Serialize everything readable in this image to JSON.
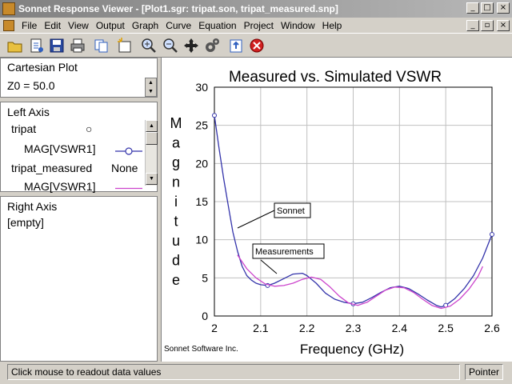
{
  "window": {
    "title": "Sonnet Response Viewer - [Plot1.sgr: tripat.son, tripat_measured.snp]",
    "controls": [
      "_",
      "□",
      "×"
    ],
    "mdi_controls": [
      "_",
      "▫",
      "×"
    ]
  },
  "menu": [
    "File",
    "Edit",
    "View",
    "Output",
    "Graph",
    "Curve",
    "Equation",
    "Project",
    "Window",
    "Help"
  ],
  "toolbar": [
    "open-icon",
    "new-icon",
    "save-icon",
    "print-icon",
    "copy-icon",
    "new-window-icon",
    "zoom-in-icon",
    "zoom-out-icon",
    "pan-icon",
    "settings-icon",
    "refresh-icon",
    "stop-icon"
  ],
  "panes": {
    "cartesian": {
      "title": "Cartesian Plot",
      "z0": "Z0 = 50.0"
    },
    "left_axis": {
      "title": "Left Axis",
      "items": [
        {
          "name": "tripat",
          "sym": "○"
        },
        {
          "name": "MAG[VSWR1]",
          "sym": ""
        },
        {
          "name": "tripat_measured",
          "sym": "None"
        },
        {
          "name": "MAG[VSWR1]",
          "sym": ""
        }
      ]
    },
    "right_axis": {
      "title": "Right Axis",
      "empty": "[empty]"
    }
  },
  "chart_data": {
    "type": "line",
    "title": "Measured vs. Simulated VSWR",
    "xlabel": "Frequency (GHz)",
    "ylabel": "Magnitude",
    "xlim": [
      2,
      2.6
    ],
    "ylim": [
      0,
      30
    ],
    "xticks": [
      "2",
      "2.1",
      "2.2",
      "2.3",
      "2.4",
      "2.5",
      "2.6"
    ],
    "yticks": [
      "0",
      "5",
      "10",
      "15",
      "20",
      "25",
      "30"
    ],
    "grid": true,
    "footer": "Sonnet Software Inc.",
    "annotations": [
      "Sonnet",
      "Measurements"
    ],
    "series": [
      {
        "name": "tripat MAG[VSWR1]",
        "color": "#3333aa",
        "marker": "circle",
        "x": [
          2.0,
          2.01,
          2.02,
          2.03,
          2.04,
          2.05,
          2.06,
          2.07,
          2.08,
          2.09,
          2.1,
          2.115,
          2.13,
          2.15,
          2.17,
          2.19,
          2.2,
          2.22,
          2.24,
          2.26,
          2.28,
          2.3,
          2.32,
          2.34,
          2.36,
          2.38,
          2.4,
          2.42,
          2.44,
          2.46,
          2.48,
          2.49,
          2.5,
          2.52,
          2.54,
          2.56,
          2.58,
          2.6
        ],
        "y": [
          26.3,
          22.0,
          18.0,
          14.5,
          11.0,
          8.5,
          6.5,
          5.3,
          4.7,
          4.3,
          4.1,
          4.0,
          4.3,
          4.9,
          5.5,
          5.6,
          5.3,
          4.3,
          3.0,
          2.2,
          1.8,
          1.6,
          1.8,
          2.4,
          3.1,
          3.7,
          3.9,
          3.6,
          2.9,
          2.1,
          1.4,
          1.2,
          1.4,
          2.3,
          3.6,
          5.3,
          7.6,
          10.7
        ]
      },
      {
        "name": "tripat_measured MAG[VSWR1]",
        "color": "#cc44cc",
        "marker": "none",
        "x": [
          2.05,
          2.07,
          2.09,
          2.11,
          2.13,
          2.15,
          2.17,
          2.19,
          2.21,
          2.23,
          2.25,
          2.27,
          2.29,
          2.31,
          2.33,
          2.35,
          2.37,
          2.39,
          2.41,
          2.43,
          2.45,
          2.47,
          2.49,
          2.51,
          2.53,
          2.55,
          2.57,
          2.58
        ],
        "y": [
          8.0,
          6.2,
          5.0,
          4.2,
          3.9,
          4.0,
          4.3,
          4.8,
          5.1,
          4.8,
          3.8,
          2.6,
          1.7,
          1.4,
          1.8,
          2.6,
          3.4,
          3.8,
          3.7,
          3.1,
          2.2,
          1.4,
          1.0,
          1.3,
          2.2,
          3.5,
          5.2,
          6.5
        ]
      }
    ]
  },
  "status": {
    "message": "Click mouse to readout data values",
    "mode": "Pointer"
  }
}
